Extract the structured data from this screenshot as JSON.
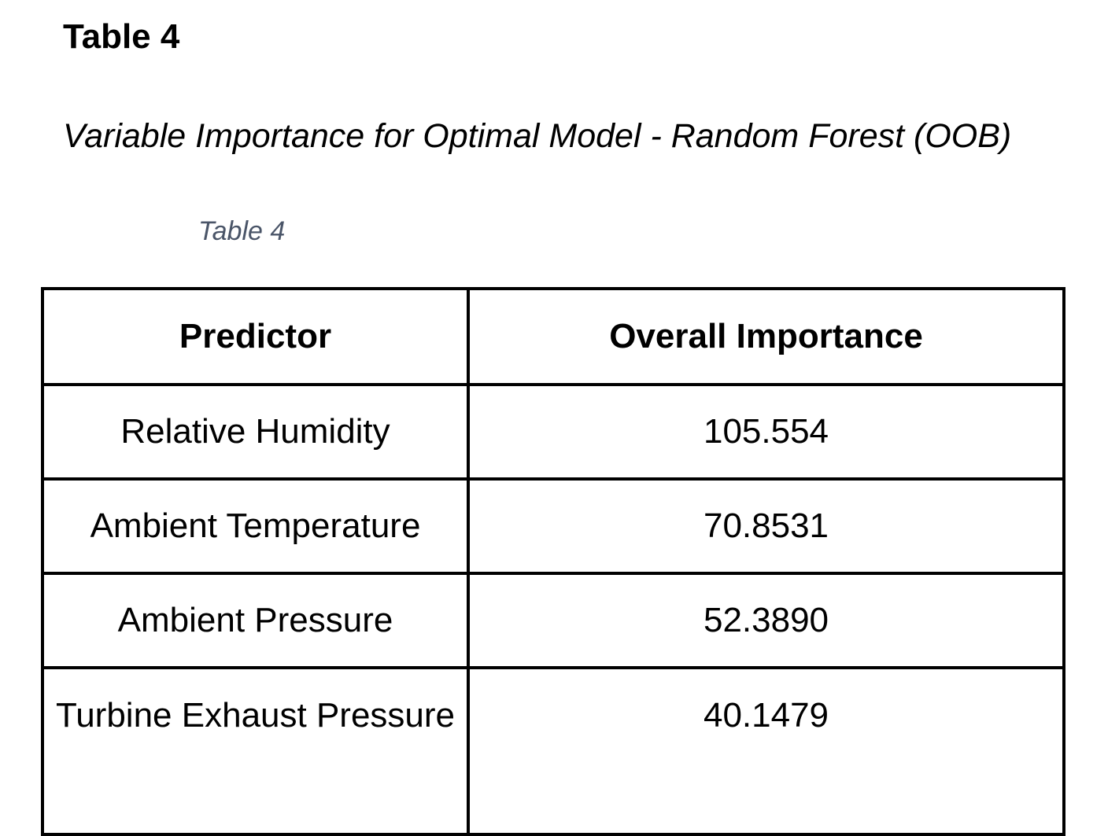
{
  "document": {
    "label": "Table 4",
    "title": "Variable Importance for Optimal Model - Random Forest (OOB)",
    "caption": "Table 4"
  },
  "table": {
    "headers": [
      "Predictor",
      "Overall Importance"
    ],
    "rows": [
      [
        "Relative Humidity",
        "105.554"
      ],
      [
        "Ambient Temperature",
        "70.8531"
      ],
      [
        "Ambient Pressure",
        "52.3890"
      ],
      [
        "Turbine Exhaust Pressure",
        "40.1479"
      ]
    ]
  }
}
